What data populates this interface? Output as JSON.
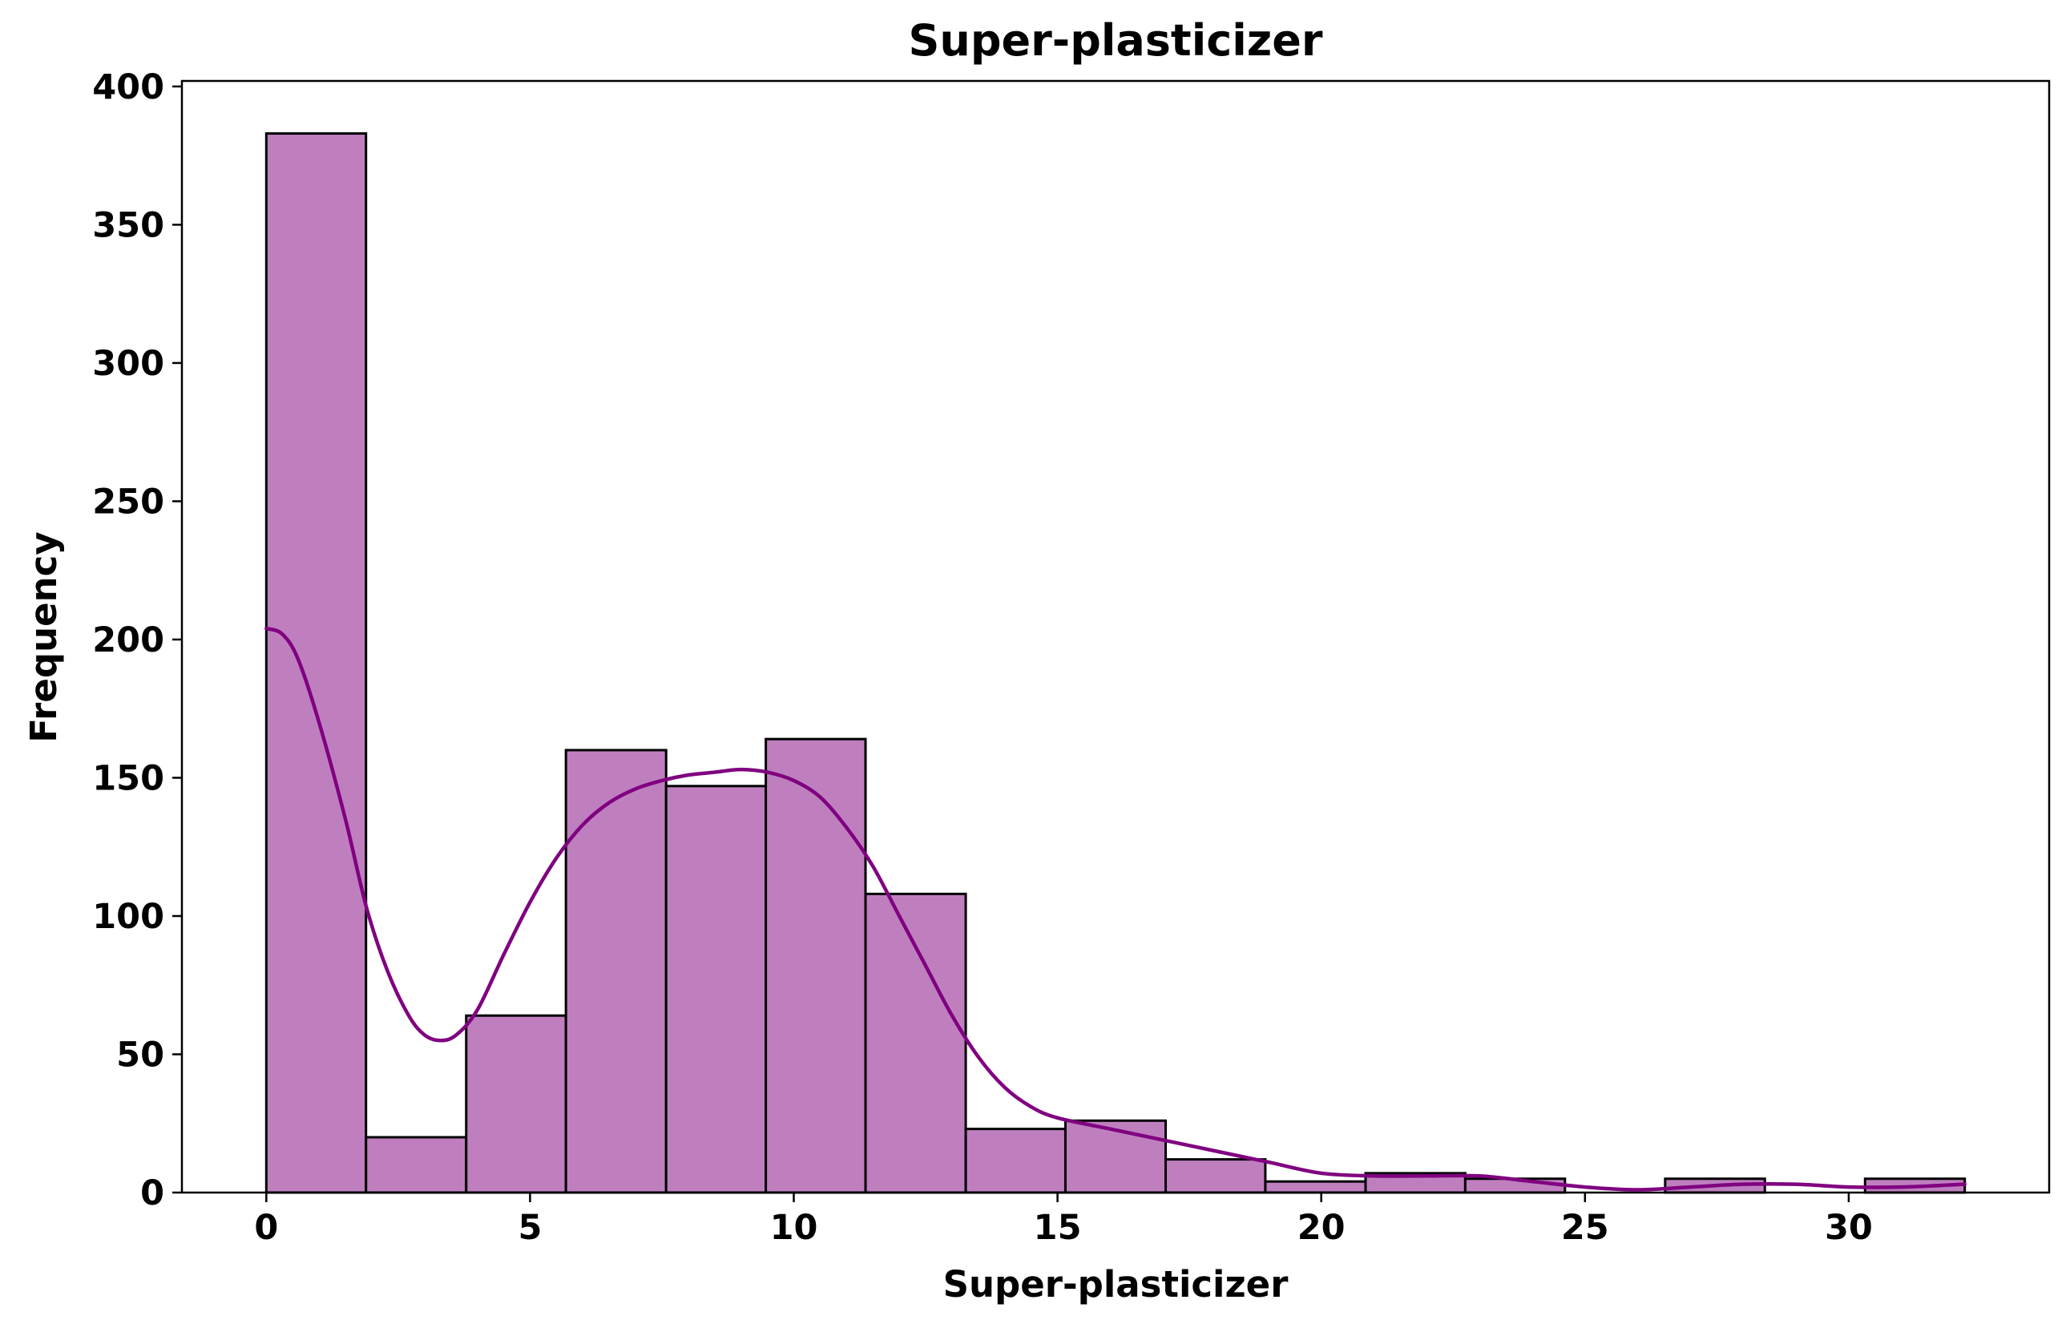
{
  "chart_data": {
    "type": "bar",
    "title": "Super-plasticizer",
    "xlabel": "Super-plasticizer",
    "ylabel": "Frequency",
    "xlim": [
      -1.6,
      33.8
    ],
    "ylim": [
      0,
      402
    ],
    "xticks": [
      0,
      5,
      10,
      15,
      20,
      25,
      30
    ],
    "yticks": [
      0,
      50,
      100,
      150,
      200,
      250,
      300,
      350,
      400
    ],
    "bins": {
      "edges": [
        0,
        1.89,
        3.79,
        5.68,
        7.58,
        9.47,
        11.36,
        13.26,
        15.15,
        17.05,
        18.94,
        20.84,
        22.73,
        24.62,
        26.52,
        28.41,
        30.31,
        32.2
      ],
      "counts": [
        383,
        20,
        64,
        160,
        147,
        164,
        108,
        23,
        26,
        12,
        4,
        7,
        5,
        0,
        5,
        0,
        5
      ]
    },
    "kde": {
      "x": [
        0,
        0.3,
        0.6,
        1.0,
        1.5,
        1.9,
        2.3,
        2.7,
        3.0,
        3.3,
        3.6,
        4.0,
        4.5,
        5.0,
        5.5,
        6.0,
        6.5,
        7.0,
        7.5,
        8.0,
        8.5,
        9.0,
        9.5,
        10.0,
        10.5,
        11.0,
        11.5,
        12.0,
        12.5,
        13.0,
        13.5,
        14.0,
        14.5,
        15.0,
        16.0,
        17.0,
        18.0,
        19.0,
        20.0,
        21.0,
        22.0,
        23.0,
        24.0,
        25.0,
        26.0,
        27.0,
        28.0,
        29.0,
        30.0,
        31.0,
        32.2
      ],
      "y": [
        204,
        202,
        193,
        170,
        135,
        103,
        80,
        64,
        57,
        55,
        57,
        66,
        86,
        105,
        121,
        133,
        141,
        146,
        149,
        151,
        152,
        153,
        152,
        149,
        143,
        132,
        118,
        100,
        82,
        64,
        49,
        38,
        31,
        27,
        23,
        19,
        15,
        11,
        7,
        6,
        6,
        6,
        4,
        2,
        1,
        2,
        3,
        3,
        2,
        2,
        3
      ]
    },
    "bar_color": "#bf7fbf",
    "bar_edge_color": "#000000",
    "kde_color": "#800080",
    "grid": false,
    "legend": false
  }
}
